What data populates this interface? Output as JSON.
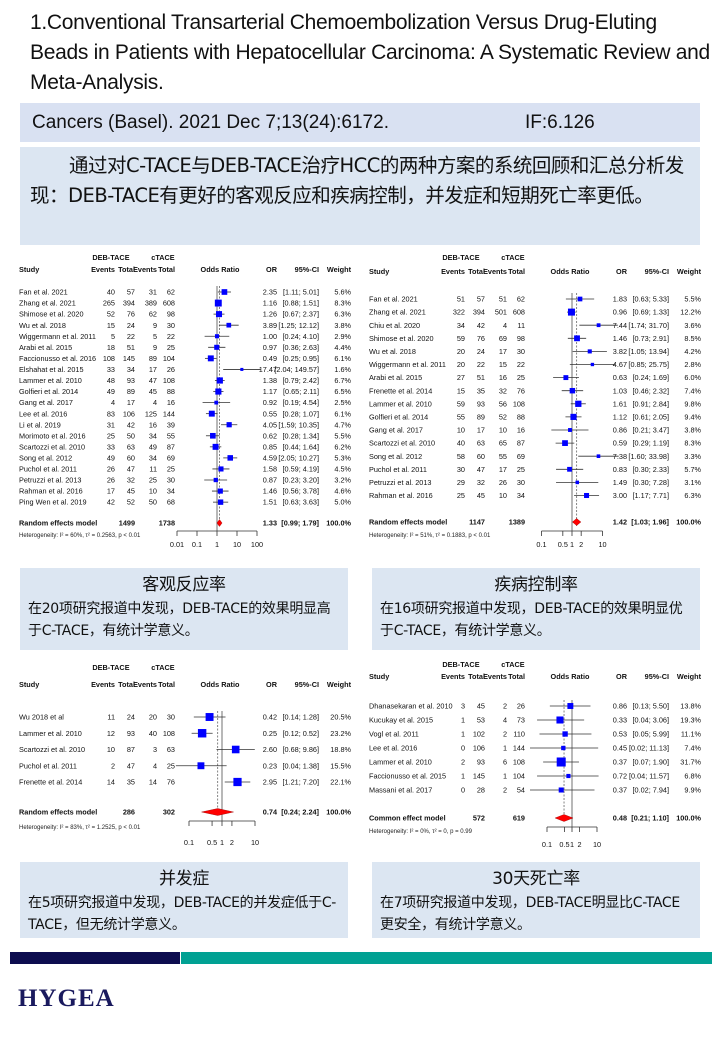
{
  "title": "1.Conventional Transarterial  Chemoembolization Versus Drug-Eluting Beads in Patients with Hepatocellular Carcinoma: A Systematic Review and Meta-Analysis.",
  "citation": {
    "journal": "Cancers (Basel). 2021 Dec 7;13(24):6172.",
    "impact_factor": "IF:6.126"
  },
  "summary": "通过对C-TACE与DEB-TACE治疗HCC的两种方案的系统回顾和汇总分析发现：DEB-TACE有更好的客观反应和疾病控制，并发症和短期死亡率更低。",
  "captions": [
    {
      "heading": "客观反应率",
      "text": "在20项研究报道中发现，DEB-TACE的效果明显高于C-TACE，有统计学意义。"
    },
    {
      "heading": "疾病控制率",
      "text": "在16项研究报道中发现，DEB-TACE的效果明显优于C-TACE，有统计学意义。"
    },
    {
      "heading": "并发症",
      "text": "在5项研究报道中发现，DEB-TACE的并发症低于C-TACE，但无统计学意义。"
    },
    {
      "heading": "30天死亡率",
      "text": "在7项研究报道中发现，DEB-TACE明显比C-TACE更安全，有统计学意义。"
    }
  ],
  "footer": {
    "logo": "HYGEA",
    "colors": {
      "navy": "#0d0d4f",
      "teal": "#00a193"
    }
  },
  "colors": {
    "box": "#0000ff",
    "diamond": "#ff0000",
    "panel": "#dce6f2"
  },
  "chart_data": [
    {
      "type": "forest",
      "scale": "log",
      "headers": {
        "group1": "DEB-TACE",
        "group2": "cTACE",
        "study": "Study",
        "events": "Events",
        "total": "Total",
        "plot": "Odds Ratio",
        "or": "OR",
        "ci": "95%-CI",
        "weight": "Weight"
      },
      "ticks": [
        "0.01",
        "0.1",
        "1",
        "10",
        "100"
      ],
      "studies": [
        [
          "Fan et al. 2021",
          40,
          57,
          31,
          62,
          2.35,
          1.11,
          5.01,
          5.6
        ],
        [
          "Zhang et al. 2021",
          265,
          394,
          389,
          608,
          1.16,
          0.88,
          1.51,
          8.3
        ],
        [
          "Shimose et al. 2020",
          52,
          76,
          62,
          98,
          1.26,
          0.67,
          2.37,
          6.3
        ],
        [
          "Wu et al. 2018",
          15,
          24,
          9,
          30,
          3.89,
          1.25,
          12.12,
          3.8
        ],
        [
          "Wiggermann et al. 2011",
          5,
          22,
          5,
          22,
          1.0,
          0.24,
          4.1,
          2.9
        ],
        [
          "Arabi et al. 2015",
          18,
          51,
          9,
          25,
          0.97,
          0.36,
          2.63,
          4.4
        ],
        [
          "Faccionusso et al. 2016",
          108,
          145,
          89,
          104,
          0.49,
          0.25,
          0.95,
          6.1
        ],
        [
          "Elshahat et al. 2015",
          33,
          34,
          17,
          26,
          17.47,
          2.04,
          149.57,
          1.6
        ],
        [
          "Lammer et al. 2010",
          48,
          93,
          47,
          108,
          1.38,
          0.79,
          2.42,
          6.7
        ],
        [
          "Golfieri et al. 2014",
          49,
          89,
          45,
          88,
          1.17,
          0.65,
          2.11,
          6.5
        ],
        [
          "Gang et al. 2017",
          4,
          17,
          4,
          16,
          0.92,
          0.19,
          4.54,
          2.5
        ],
        [
          "Lee et al. 2016",
          83,
          106,
          125,
          144,
          0.55,
          0.28,
          1.07,
          6.1
        ],
        [
          "Li et al. 2019",
          31,
          42,
          16,
          39,
          4.05,
          1.59,
          10.35,
          4.7
        ],
        [
          "Morimoto et al. 2016",
          25,
          50,
          34,
          55,
          0.62,
          0.28,
          1.34,
          5.5
        ],
        [
          "Scartozzi et al. 2010",
          33,
          63,
          49,
          87,
          0.85,
          0.44,
          1.64,
          6.2
        ],
        [
          "Song et al. 2012",
          49,
          60,
          34,
          69,
          4.59,
          2.05,
          10.27,
          5.3
        ],
        [
          "Puchol et al. 2011",
          26,
          47,
          11,
          25,
          1.58,
          0.59,
          4.19,
          4.5
        ],
        [
          "Petruzzi et al. 2013",
          26,
          32,
          25,
          30,
          0.87,
          0.23,
          3.2,
          3.2
        ],
        [
          "Rahman et al. 2016",
          17,
          45,
          10,
          34,
          1.46,
          0.56,
          3.78,
          4.6
        ],
        [
          "Ping Wen et al. 2019",
          42,
          52,
          50,
          68,
          1.51,
          0.63,
          3.63,
          5.0
        ]
      ],
      "pooled": {
        "label": "Random effects model",
        "total1": 1499,
        "total2": 1738,
        "or": 1.33,
        "ci_low": 0.99,
        "ci_high": 1.79,
        "weight": "100.0%"
      },
      "heterogeneity": "Heterogeneity: I² = 60%, τ² = 0.2563, p < 0.01"
    },
    {
      "type": "forest",
      "scale": "log",
      "headers": {
        "group1": "DEB-TACE",
        "group2": "cTACE",
        "study": "Study",
        "events": "Events",
        "total": "Total",
        "plot": "Odds Ratio",
        "or": "OR",
        "ci": "95%-CI",
        "weight": "Weight"
      },
      "ticks": [
        "0.1",
        "0.5",
        "1",
        "2",
        "10"
      ],
      "studies": [
        [
          "Fan et al. 2021",
          51,
          57,
          51,
          62,
          1.83,
          0.63,
          5.33,
          5.5
        ],
        [
          "Zhang et al. 2021",
          322,
          394,
          501,
          608,
          0.96,
          0.69,
          1.33,
          12.2
        ],
        [
          "Chiu et al. 2020",
          34,
          42,
          4,
          11,
          7.44,
          1.74,
          31.7,
          3.6
        ],
        [
          "Shimose et al. 2020",
          59,
          76,
          69,
          98,
          1.46,
          0.73,
          2.91,
          8.5
        ],
        [
          "Wu et al. 2018",
          20,
          24,
          17,
          30,
          3.82,
          1.05,
          13.94,
          4.2
        ],
        [
          "Wiggermann et al. 2011",
          20,
          22,
          15,
          22,
          4.67,
          0.85,
          25.75,
          2.8
        ],
        [
          "Arabi et al. 2015",
          27,
          51,
          16,
          25,
          0.63,
          0.24,
          1.69,
          6.0
        ],
        [
          "Frenette et al. 2014",
          15,
          35,
          32,
          76,
          1.03,
          0.46,
          2.32,
          7.4
        ],
        [
          "Lammer et al. 2010",
          59,
          93,
          56,
          108,
          1.61,
          0.91,
          2.84,
          9.8
        ],
        [
          "Golfieri et al. 2014",
          55,
          89,
          52,
          88,
          1.12,
          0.61,
          2.05,
          9.4
        ],
        [
          "Gang et al. 2017",
          10,
          17,
          10,
          16,
          0.86,
          0.21,
          3.47,
          3.8
        ],
        [
          "Scartozzi et al. 2010",
          40,
          63,
          65,
          87,
          0.59,
          0.29,
          1.19,
          8.3
        ],
        [
          "Song et al. 2012",
          58,
          60,
          55,
          69,
          7.38,
          1.6,
          33.98,
          3.3
        ],
        [
          "Puchol et al. 2011",
          30,
          47,
          17,
          25,
          0.83,
          0.3,
          2.33,
          5.7
        ],
        [
          "Petruzzi et al. 2013",
          29,
          32,
          26,
          30,
          1.49,
          0.3,
          7.28,
          3.1
        ],
        [
          "Rahman et al. 2016",
          25,
          45,
          10,
          34,
          3.0,
          1.17,
          7.71,
          6.3
        ]
      ],
      "pooled": {
        "label": "Random effects model",
        "total1": 1147,
        "total2": 1389,
        "or": 1.42,
        "ci_low": 1.03,
        "ci_high": 1.96,
        "weight": "100.0%"
      },
      "heterogeneity": "Heterogeneity: I² = 51%, τ² = 0.1883, p < 0.01"
    },
    {
      "type": "forest",
      "scale": "log",
      "headers": {
        "group1": "DEB-TACE",
        "group2": "cTACE",
        "study": "Study",
        "events": "Events",
        "total": "Total",
        "plot": "Odds Ratio",
        "or": "OR",
        "ci": "95%-CI",
        "weight": "Weight"
      },
      "ticks": [
        "0.1",
        "0.5",
        "1",
        "2",
        "10"
      ],
      "studies": [
        [
          "Wu 2018 et al",
          11,
          24,
          20,
          30,
          0.42,
          0.14,
          1.28,
          20.5
        ],
        [
          "Lammer et al. 2010",
          12,
          93,
          40,
          108,
          0.25,
          0.12,
          0.52,
          23.2
        ],
        [
          "Scartozzi et al. 2010",
          10,
          87,
          3,
          63,
          2.6,
          0.68,
          9.86,
          18.8
        ],
        [
          "Puchol et al. 2011",
          2,
          47,
          4,
          25,
          0.23,
          0.04,
          1.38,
          15.5
        ],
        [
          "Frenette et al. 2014",
          14,
          35,
          14,
          76,
          2.95,
          1.21,
          7.2,
          22.1
        ]
      ],
      "pooled": {
        "label": "Random effects model",
        "total1": 286,
        "total2": 302,
        "or": 0.74,
        "ci_low": 0.24,
        "ci_high": 2.24,
        "weight": "100.0%"
      },
      "heterogeneity": "Heterogeneity: I² = 83%, τ² = 1.2525, p < 0.01"
    },
    {
      "type": "forest",
      "scale": "log",
      "headers": {
        "group1": "DEB-TACE",
        "group2": "cTACE",
        "study": "Study",
        "events": "Events",
        "total": "Total",
        "plot": "Odds Ratio",
        "or": "OR",
        "ci": "95%-CI",
        "weight": "Weight"
      },
      "ticks": [
        "0.1",
        "0.5",
        "1",
        "2",
        "10"
      ],
      "studies": [
        [
          "Dhanasekaran et al. 2010",
          3,
          45,
          2,
          26,
          0.86,
          0.13,
          5.5,
          13.8
        ],
        [
          "Kucukay et al. 2015",
          1,
          53,
          4,
          73,
          0.33,
          0.04,
          3.06,
          19.3
        ],
        [
          "Vogl et al. 2011",
          1,
          102,
          2,
          110,
          0.53,
          0.05,
          5.99,
          11.1
        ],
        [
          "Lee et al. 2016",
          0,
          106,
          1,
          144,
          0.45,
          0.02,
          11.13,
          7.4
        ],
        [
          "Lammer et al. 2010",
          2,
          93,
          6,
          108,
          0.37,
          0.07,
          1.9,
          31.7
        ],
        [
          "Faccionusso et al. 2015",
          1,
          145,
          1,
          104,
          0.72,
          0.04,
          11.57,
          6.8
        ],
        [
          "Massani et al. 2017",
          0,
          28,
          2,
          54,
          0.37,
          0.02,
          7.94,
          9.9
        ]
      ],
      "pooled": {
        "label": "Common effect model",
        "total1": 572,
        "total2": 619,
        "or": 0.48,
        "ci_low": 0.21,
        "ci_high": 1.1,
        "weight": "100.0%"
      },
      "heterogeneity": "Heterogeneity: I² = 0%, τ² = 0, p = 0.99"
    }
  ]
}
